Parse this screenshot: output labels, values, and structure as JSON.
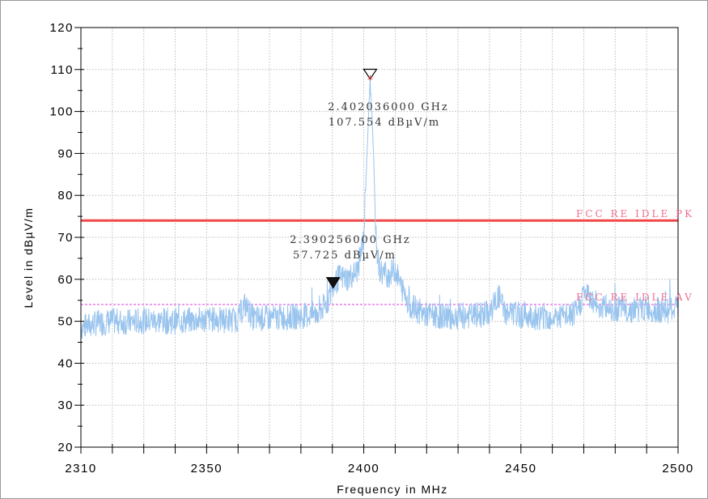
{
  "chart_data": {
    "type": "line",
    "title": "",
    "xlabel": "Frequency in MHz",
    "ylabel": "Level in dBµV/m",
    "xlim": [
      2310,
      2500
    ],
    "ylim": [
      20,
      120
    ],
    "x_ticks": [
      "2310",
      "2350",
      "2400",
      "2450",
      "2500"
    ],
    "y_ticks": [
      "20",
      "30",
      "40",
      "50",
      "60",
      "70",
      "80",
      "90",
      "100",
      "110",
      "120"
    ],
    "grid": true,
    "colors": {
      "trace": "#99c4ee",
      "pk_limit": "#f04848",
      "av_limit": "#e040e0",
      "limit_text": "#f07090",
      "marker": "#cc2222"
    },
    "limits": [
      {
        "name": "FCC RE IDLE PK",
        "value": 74
      },
      {
        "name": "FCC RE IDLE AV",
        "value": 54
      }
    ],
    "series": [
      {
        "x": [
          2310,
          2315,
          2320,
          2325,
          2330,
          2335,
          2340,
          2345,
          2350,
          2355,
          2360,
          2362,
          2365,
          2370,
          2375,
          2380,
          2385,
          2388,
          2390,
          2392,
          2395,
          2398,
          2400,
          2401,
          2402,
          2403,
          2404,
          2405,
          2408,
          2410,
          2412,
          2415,
          2420,
          2425,
          2430,
          2435,
          2440,
          2443,
          2445,
          2450,
          2455,
          2460,
          2465,
          2468,
          2470,
          2475,
          2480,
          2485,
          2490,
          2495,
          2500
        ],
        "values": [
          48.5,
          49.5,
          50,
          49.8,
          50.2,
          50.1,
          50,
          50.2,
          50.5,
          50.3,
          50.5,
          54,
          50.6,
          50.8,
          51,
          51.2,
          51.8,
          54,
          57.7,
          60.5,
          60.2,
          62,
          70,
          90,
          107.5,
          92,
          68,
          62,
          61,
          62.5,
          58,
          53.5,
          51.5,
          51.2,
          51,
          51.3,
          52,
          56,
          52,
          51.5,
          51,
          51,
          51.2,
          52,
          57,
          53.5,
          53,
          52.8,
          53,
          52.5,
          53
        ]
      }
    ],
    "markers": [
      {
        "label_freq": "2.402036000 GHz",
        "label_level": "107.554 dBµV/m",
        "x": 2402.036,
        "y": 107.554,
        "symbol": "open-triangle"
      },
      {
        "label_freq": "2.390256000 GHz",
        "label_level": "57.725 dBµV/m",
        "x": 2390.256,
        "y": 57.725,
        "symbol": "filled-triangle"
      }
    ]
  }
}
